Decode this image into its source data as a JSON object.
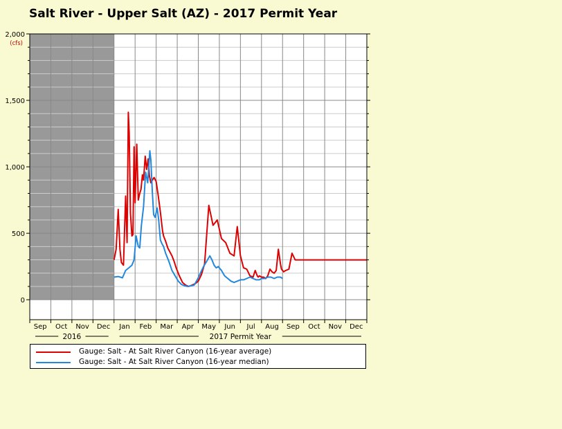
{
  "title": "Salt River - Upper Salt (AZ) - 2017 Permit Year",
  "chart_data": {
    "type": "line",
    "title": "Salt River - Upper Salt (AZ) - 2017 Permit Year",
    "ylabel": "(cfs)",
    "ylim": [
      -150,
      2000
    ],
    "yticks": [
      0,
      500,
      1000,
      1500,
      2000
    ],
    "ytick_labels": [
      "0",
      "500",
      "1,000",
      "1,500",
      "2,000"
    ],
    "x_unit": "month index (0 = start of Sep 2016)",
    "xlim": [
      0,
      16
    ],
    "month_labels": [
      "Sep",
      "Oct",
      "Nov",
      "Dec",
      "Jan",
      "Feb",
      "Mar",
      "Apr",
      "May",
      "Jun",
      "Jul",
      "Aug",
      "Sep",
      "Oct",
      "Nov",
      "Dec"
    ],
    "year_labels": [
      {
        "text": "2016",
        "start": 0,
        "end": 4
      },
      {
        "text": "2017 Permit Year",
        "start": 4,
        "end": 16
      }
    ],
    "shaded_region": {
      "start": 0,
      "end": 4,
      "color": "#999999"
    },
    "grid": true,
    "legend_position": "bottom",
    "series": [
      {
        "name": "Gauge: Salt - At Salt River Canyon (16-year average)",
        "color": "#dd0000",
        "x": [
          4.0,
          4.1,
          4.2,
          4.28,
          4.35,
          4.45,
          4.55,
          4.62,
          4.68,
          4.72,
          4.78,
          4.85,
          4.9,
          4.95,
          5.0,
          5.08,
          5.15,
          5.22,
          5.28,
          5.35,
          5.4,
          5.48,
          5.55,
          5.62,
          5.68,
          5.75,
          5.82,
          5.9,
          6.0,
          6.1,
          6.2,
          6.3,
          6.35,
          6.45,
          6.55,
          6.65,
          6.75,
          6.85,
          6.95,
          7.1,
          7.25,
          7.4,
          7.55,
          7.7,
          7.85,
          8.0,
          8.15,
          8.3,
          8.5,
          8.7,
          8.9,
          9.1,
          9.3,
          9.5,
          9.7,
          9.85,
          10.0,
          10.15,
          10.3,
          10.45,
          10.6,
          10.7,
          10.75,
          10.8,
          10.85,
          10.9,
          11.0,
          11.1,
          11.2,
          11.3,
          11.4,
          11.5,
          11.6,
          11.7,
          11.8,
          11.9,
          11.95,
          12.05,
          12.15,
          12.3,
          12.45,
          12.6,
          12.75,
          12.9,
          13.0,
          13.2,
          13.4,
          13.6,
          13.8,
          14.0,
          14.2,
          14.4,
          14.55,
          14.7,
          14.8,
          14.9,
          14.95,
          15.1,
          15.25,
          15.35,
          15.45,
          15.55,
          15.65,
          15.75,
          15.85,
          16.0
        ],
        "values": [
          300,
          380,
          680,
          380,
          280,
          260,
          780,
          430,
          1410,
          1250,
          650,
          480,
          490,
          1150,
          730,
          1170,
          750,
          800,
          830,
          940,
          900,
          1080,
          980,
          1060,
          930,
          880,
          900,
          920,
          890,
          780,
          660,
          520,
          480,
          440,
          390,
          360,
          330,
          290,
          240,
          180,
          130,
          110,
          100,
          110,
          120,
          140,
          190,
          270,
          710,
          560,
          600,
          460,
          430,
          350,
          330,
          550,
          330,
          240,
          230,
          180,
          170,
          220,
          200,
          180,
          170,
          180,
          170,
          170,
          160,
          180,
          230,
          210,
          200,
          220,
          380,
          270,
          230,
          210,
          220,
          230,
          350,
          300,
          300,
          300,
          300,
          300,
          300,
          300,
          300,
          300,
          300,
          300,
          300,
          300,
          300,
          300,
          300,
          300,
          300,
          300,
          300,
          300,
          300,
          300,
          300,
          300
        ],
        "values_note": "approximate daily average read from chart"
      },
      {
        "name": "Gauge: Salt - At Salt River Canyon (16-year median)",
        "color": "#2288dd",
        "x": [
          4.0,
          4.2,
          4.4,
          4.55,
          4.7,
          4.85,
          4.95,
          5.05,
          5.15,
          5.22,
          5.3,
          5.4,
          5.5,
          5.6,
          5.7,
          5.75,
          5.82,
          5.88,
          5.95,
          6.05,
          6.12,
          6.2,
          6.28,
          6.35,
          6.45,
          6.6,
          6.75,
          6.9,
          7.05,
          7.2,
          7.35,
          7.5,
          7.65,
          7.8,
          7.95,
          8.1,
          8.25,
          8.4,
          8.55,
          8.65,
          8.75,
          8.85,
          8.95,
          9.1,
          9.25,
          9.4,
          9.55,
          9.7,
          9.85,
          10.0,
          10.15,
          10.3,
          10.45,
          10.6,
          10.75,
          10.9,
          11.0,
          11.15,
          11.3,
          11.45,
          11.6,
          11.75,
          11.9,
          12.0
        ],
        "values": [
          170,
          175,
          165,
          220,
          240,
          260,
          300,
          480,
          400,
          390,
          560,
          700,
          960,
          880,
          1120,
          1050,
          810,
          640,
          620,
          690,
          600,
          450,
          420,
          400,
          350,
          290,
          220,
          180,
          140,
          115,
          105,
          100,
          105,
          110,
          150,
          200,
          250,
          290,
          330,
          300,
          260,
          240,
          250,
          220,
          180,
          160,
          140,
          130,
          140,
          150,
          150,
          160,
          170,
          160,
          150,
          150,
          160,
          160,
          170,
          170,
          160,
          170,
          170,
          160
        ],
        "values_note": "approximate daily median read from chart"
      }
    ]
  },
  "legend": {
    "items": [
      {
        "label": "Gauge: Salt - At Salt River Canyon (16-year average)",
        "color": "#dd0000"
      },
      {
        "label": "Gauge: Salt - At Salt River Canyon (16-year median)",
        "color": "#2288dd"
      }
    ]
  }
}
